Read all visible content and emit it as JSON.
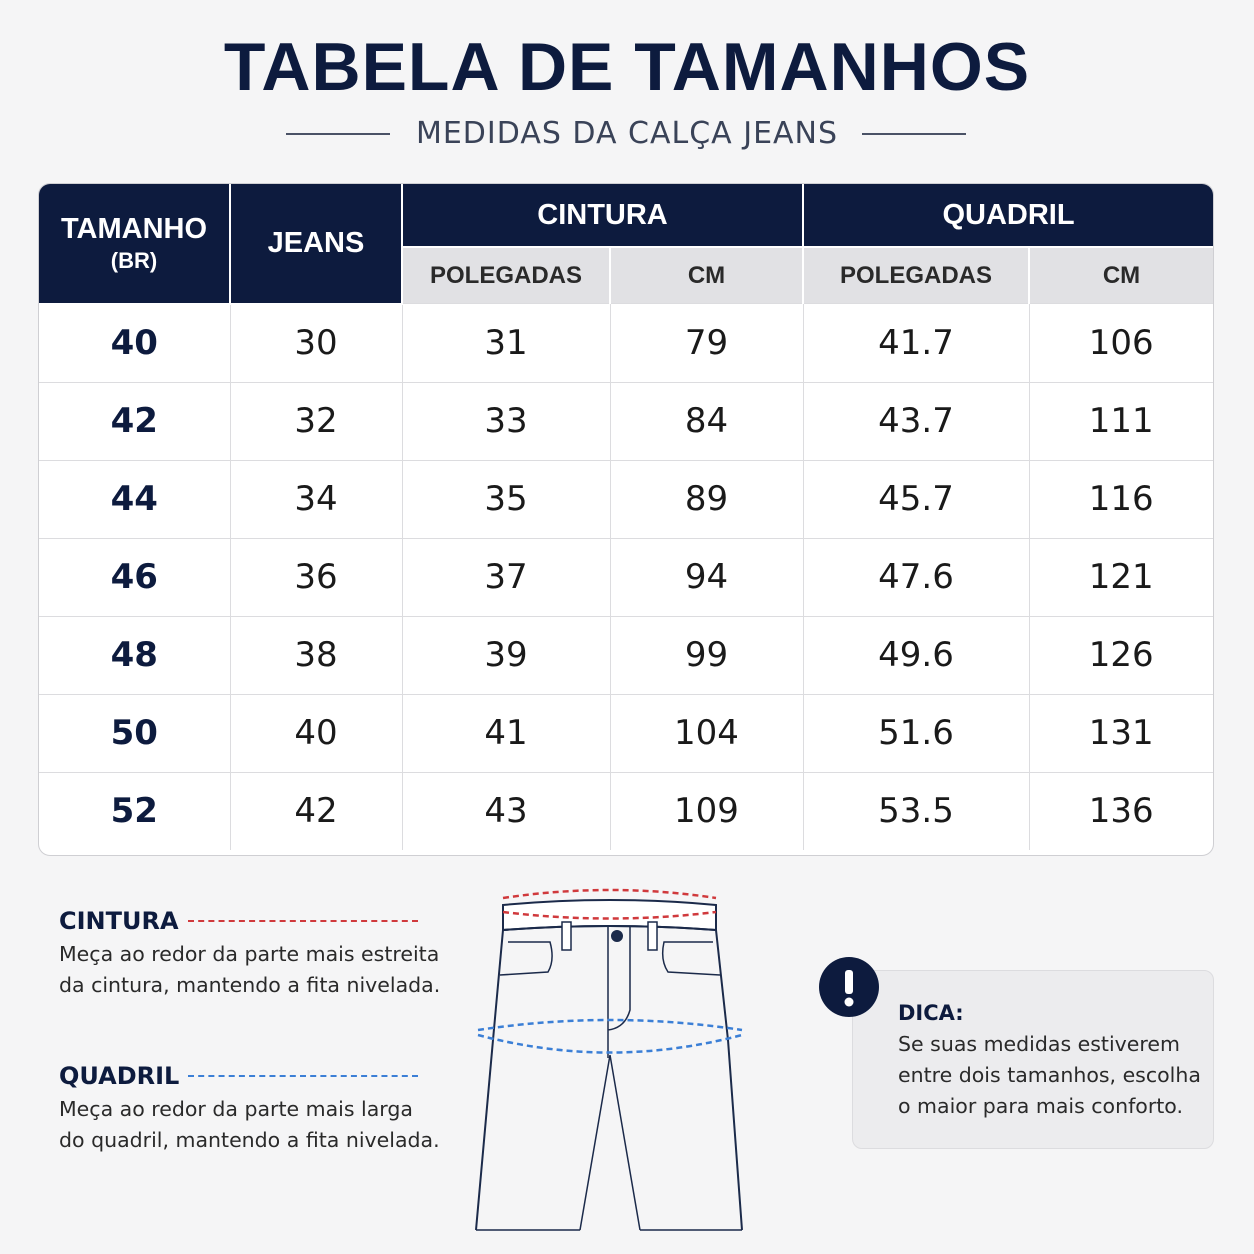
{
  "header": {
    "title": "TABELA DE TAMANHOS",
    "subtitle": "MEDIDAS DA CALÇA JEANS"
  },
  "table": {
    "headers": {
      "size": "TAMANHO",
      "size_note": "(BR)",
      "jeans": "JEANS",
      "waist": "CINTURA",
      "hip": "QUADRIL",
      "sub": [
        "POLEGADAS",
        "CM",
        "POLEGADAS",
        "CM"
      ]
    },
    "rows": [
      [
        "40",
        "30",
        "31",
        "79",
        "41.7",
        "106"
      ],
      [
        "42",
        "32",
        "33",
        "84",
        "43.7",
        "111"
      ],
      [
        "44",
        "34",
        "35",
        "89",
        "45.7",
        "116"
      ],
      [
        "46",
        "36",
        "37",
        "94",
        "47.6",
        "121"
      ],
      [
        "48",
        "38",
        "39",
        "99",
        "49.6",
        "126"
      ],
      [
        "50",
        "40",
        "41",
        "104",
        "51.6",
        "131"
      ],
      [
        "52",
        "42",
        "43",
        "109",
        "53.5",
        "136"
      ]
    ]
  },
  "guide": {
    "waist": {
      "title": "CINTURA",
      "lines": [
        "Meça ao redor da parte mais estreita",
        "da cintura, mantendo a fita nivelada."
      ]
    },
    "hip": {
      "title": "QUADRIL",
      "lines": [
        "Meça ao redor da parte mais larga",
        "do quadril, mantendo a fita nivelada."
      ]
    }
  },
  "tip": {
    "title": "DICA:",
    "lines": [
      "Se suas medidas estiverem",
      "entre dois tamanhos, escolha",
      "o maior para mais conforto."
    ]
  }
}
